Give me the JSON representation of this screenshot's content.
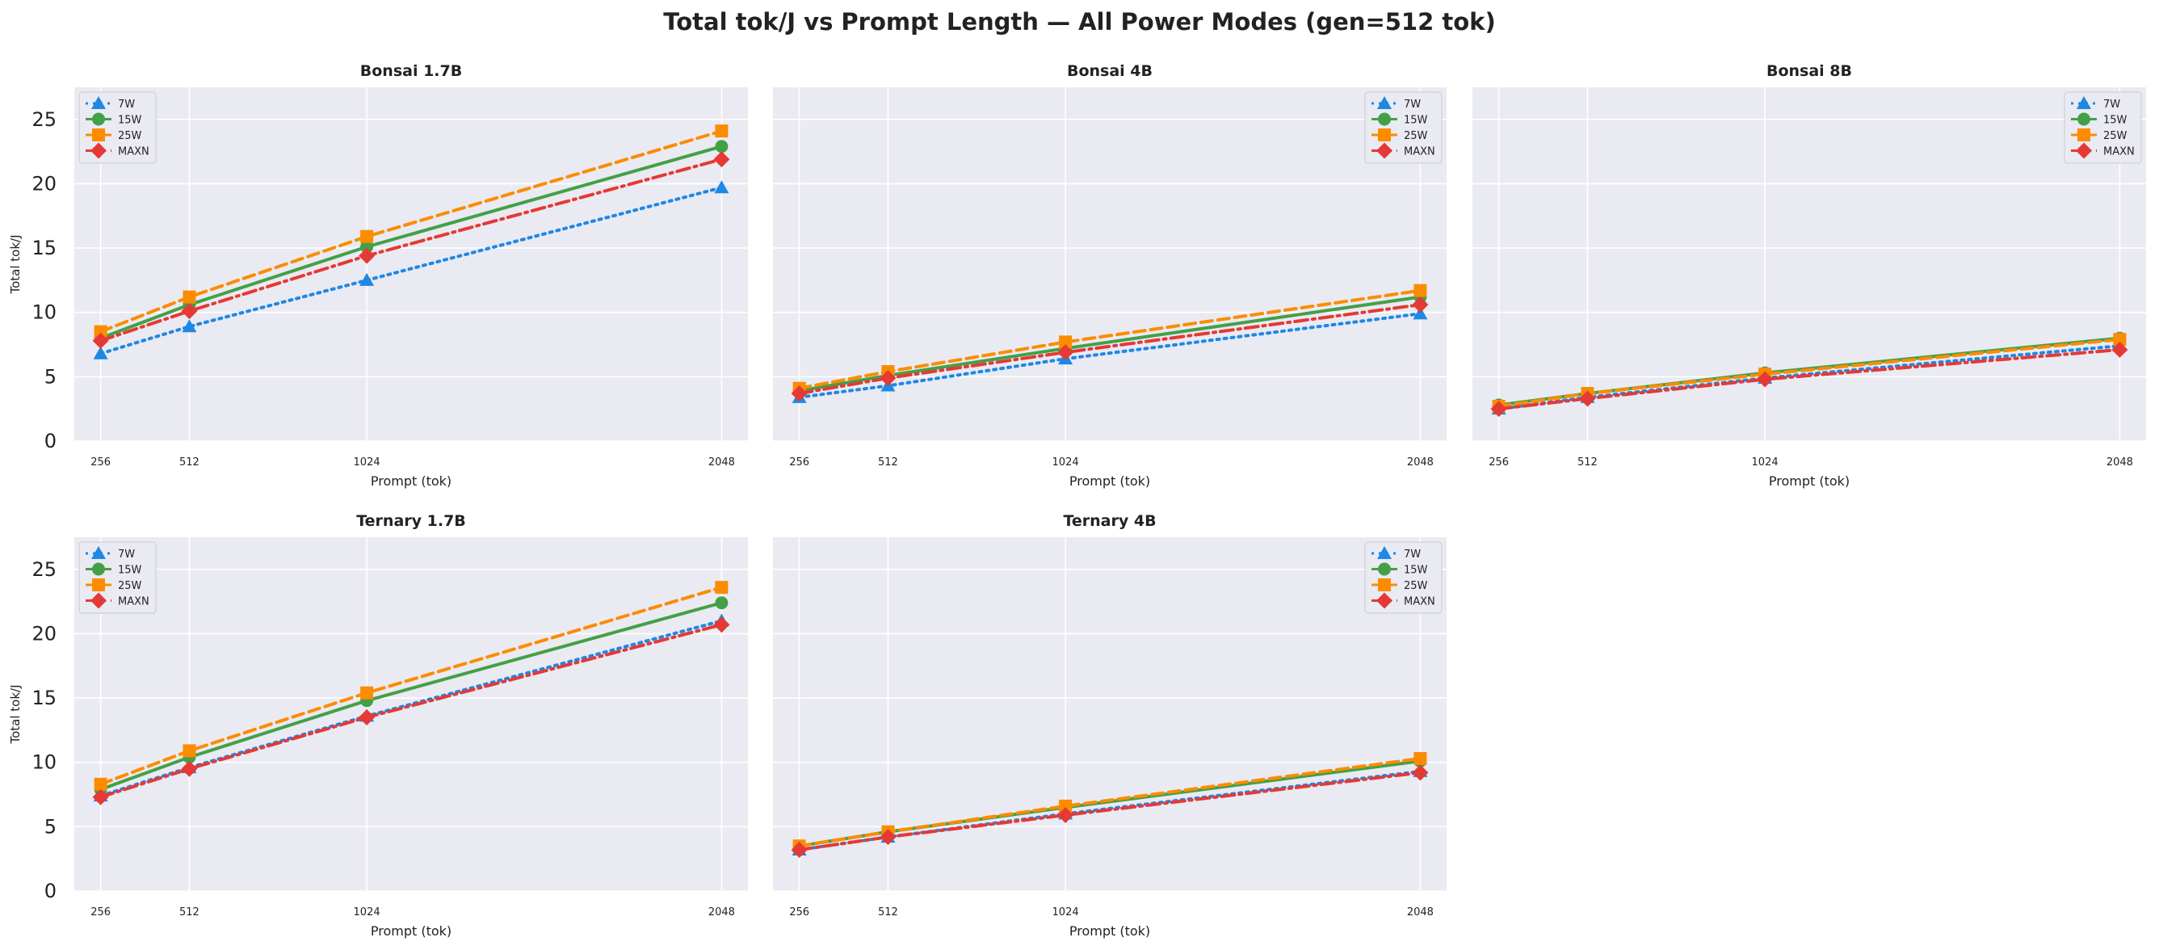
{
  "figure_title": "Total tok/J vs Prompt Length — All Power Modes (gen=512 tok)",
  "colors": {
    "panel_bg": "#eaeaf2",
    "grid": "#ffffff",
    "7W": "#1e88e5",
    "15W": "#43a047",
    "25W": "#fb8c00",
    "MAXN": "#e53935"
  },
  "legend_labels": [
    "7W",
    "15W",
    "25W",
    "MAXN"
  ],
  "chart_data": [
    {
      "type": "line",
      "title": "Bonsai 1.7B",
      "xlabel": "Prompt (tok)",
      "ylabel": "Total tok/J",
      "x": [
        256,
        512,
        1024,
        2048
      ],
      "xlim": [
        180,
        2124
      ],
      "ylim": [
        0,
        27.5
      ],
      "yticks": [
        0,
        5,
        10,
        15,
        20,
        25
      ],
      "grid": true,
      "legend_position": "top-left",
      "series": [
        {
          "name": "7W",
          "style": "dotted",
          "marker": "triangle",
          "values": [
            6.8,
            8.9,
            12.5,
            19.7
          ]
        },
        {
          "name": "15W",
          "style": "solid",
          "marker": "circle",
          "values": [
            8.0,
            10.6,
            15.1,
            22.9
          ]
        },
        {
          "name": "25W",
          "style": "dashed",
          "marker": "square",
          "values": [
            8.5,
            11.2,
            15.9,
            24.1
          ]
        },
        {
          "name": "MAXN",
          "style": "dashdot",
          "marker": "diamond",
          "values": [
            7.8,
            10.1,
            14.4,
            21.9
          ]
        }
      ]
    },
    {
      "type": "line",
      "title": "Bonsai 4B",
      "xlabel": "Prompt (tok)",
      "ylabel": "",
      "x": [
        256,
        512,
        1024,
        2048
      ],
      "xlim": [
        180,
        2124
      ],
      "ylim": [
        0,
        27.5
      ],
      "yticks": [
        0,
        5,
        10,
        15,
        20,
        25
      ],
      "grid": true,
      "legend_position": "top-right",
      "series": [
        {
          "name": "7W",
          "style": "dotted",
          "marker": "triangle",
          "values": [
            3.4,
            4.3,
            6.4,
            9.9
          ]
        },
        {
          "name": "15W",
          "style": "solid",
          "marker": "circle",
          "values": [
            3.9,
            5.1,
            7.2,
            11.2
          ]
        },
        {
          "name": "25W",
          "style": "dashed",
          "marker": "square",
          "values": [
            4.1,
            5.4,
            7.7,
            11.7
          ]
        },
        {
          "name": "MAXN",
          "style": "dashdot",
          "marker": "diamond",
          "values": [
            3.7,
            4.9,
            6.9,
            10.6
          ]
        }
      ]
    },
    {
      "type": "line",
      "title": "Bonsai 8B",
      "xlabel": "Prompt (tok)",
      "ylabel": "",
      "x": [
        256,
        512,
        1024,
        2048
      ],
      "xlim": [
        180,
        2124
      ],
      "ylim": [
        0,
        27.5
      ],
      "yticks": [
        0,
        5,
        10,
        15,
        20,
        25
      ],
      "grid": true,
      "legend_position": "top-right",
      "series": [
        {
          "name": "7W",
          "style": "dotted",
          "marker": "triangle",
          "values": [
            2.5,
            3.4,
            4.9,
            7.4
          ]
        },
        {
          "name": "15W",
          "style": "solid",
          "marker": "circle",
          "values": [
            2.8,
            3.7,
            5.3,
            8.0
          ]
        },
        {
          "name": "25W",
          "style": "dashed",
          "marker": "square",
          "values": [
            2.7,
            3.7,
            5.2,
            7.9
          ]
        },
        {
          "name": "MAXN",
          "style": "dashdot",
          "marker": "diamond",
          "values": [
            2.5,
            3.3,
            4.8,
            7.1
          ]
        }
      ]
    },
    {
      "type": "line",
      "title": "Ternary 1.7B",
      "xlabel": "Prompt (tok)",
      "ylabel": "Total tok/J",
      "x": [
        256,
        512,
        1024,
        2048
      ],
      "xlim": [
        180,
        2124
      ],
      "ylim": [
        0,
        27.5
      ],
      "yticks": [
        0,
        5,
        10,
        15,
        20,
        25
      ],
      "grid": true,
      "legend_position": "top-left",
      "series": [
        {
          "name": "7W",
          "style": "dotted",
          "marker": "triangle",
          "values": [
            7.4,
            9.6,
            13.6,
            21.0
          ]
        },
        {
          "name": "15W",
          "style": "solid",
          "marker": "circle",
          "values": [
            7.9,
            10.4,
            14.8,
            22.4
          ]
        },
        {
          "name": "25W",
          "style": "dashed",
          "marker": "square",
          "values": [
            8.3,
            10.9,
            15.4,
            23.6
          ]
        },
        {
          "name": "MAXN",
          "style": "dashdot",
          "marker": "diamond",
          "values": [
            7.3,
            9.5,
            13.5,
            20.7
          ]
        }
      ]
    },
    {
      "type": "line",
      "title": "Ternary 4B",
      "xlabel": "Prompt (tok)",
      "ylabel": "",
      "x": [
        256,
        512,
        1024,
        2048
      ],
      "xlim": [
        180,
        2124
      ],
      "ylim": [
        0,
        27.5
      ],
      "yticks": [
        0,
        5,
        10,
        15,
        20,
        25
      ],
      "grid": true,
      "legend_position": "top-right",
      "series": [
        {
          "name": "7W",
          "style": "dotted",
          "marker": "triangle",
          "values": [
            3.2,
            4.2,
            6.0,
            9.3
          ]
        },
        {
          "name": "15W",
          "style": "solid",
          "marker": "circle",
          "values": [
            3.5,
            4.6,
            6.5,
            10.1
          ]
        },
        {
          "name": "25W",
          "style": "dashed",
          "marker": "square",
          "values": [
            3.5,
            4.6,
            6.6,
            10.3
          ]
        },
        {
          "name": "MAXN",
          "style": "dashdot",
          "marker": "diamond",
          "values": [
            3.2,
            4.2,
            5.9,
            9.2
          ]
        }
      ]
    }
  ]
}
